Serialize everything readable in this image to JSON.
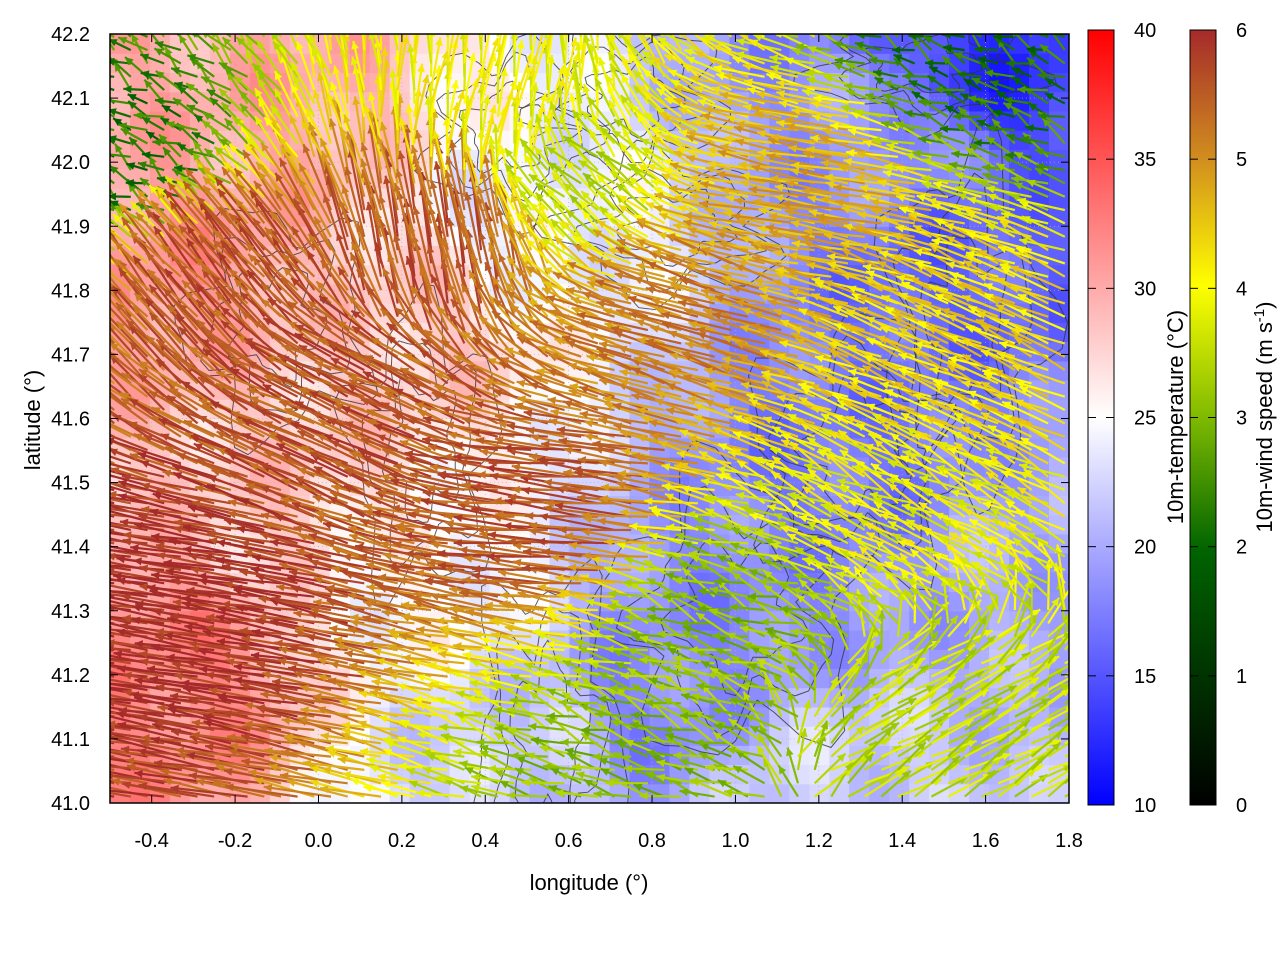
{
  "chart_data": {
    "type": "heatmap",
    "xlabel": "longitude (°)",
    "ylabel": "latitude (°)",
    "xlim": [
      -0.5,
      1.8
    ],
    "ylim": [
      41.0,
      42.2
    ],
    "x_ticks": [
      "-0.4",
      "-0.2",
      "0.0",
      "0.2",
      "0.4",
      "0.6",
      "0.8",
      "1.0",
      "1.2",
      "1.4",
      "1.6",
      "1.8"
    ],
    "y_ticks": [
      "41.0",
      "41.1",
      "41.2",
      "41.3",
      "41.4",
      "41.5",
      "41.6",
      "41.7",
      "41.8",
      "41.9",
      "42.0",
      "42.1",
      "42.2"
    ],
    "grid": true,
    "overlays": [
      "10m-temperature field (color shading)",
      "10m-wind vectors colored by speed",
      "terrain contour lines"
    ],
    "temperature_colorbar": {
      "label": "10m-temperature (°C)",
      "range": [
        10,
        40
      ],
      "ticks": [
        "10",
        "15",
        "20",
        "25",
        "30",
        "35",
        "40"
      ],
      "colors": [
        "#0000ff",
        "#ffffff",
        "#ff0000"
      ]
    },
    "wind_colorbar": {
      "label": "10m-wind speed (m s",
      "label_sup": "-1",
      "label_close": ")",
      "range": [
        0,
        6
      ],
      "ticks": [
        "0",
        "1",
        "2",
        "3",
        "4",
        "5",
        "6"
      ],
      "colors": [
        "#000000",
        "#006400",
        "#7fba00",
        "#ffff00",
        "#d2901e",
        "#a52a2a"
      ]
    },
    "temperature_regions": [
      {
        "lon": -0.35,
        "lat": 41.85,
        "temp": 31
      },
      {
        "lon": -0.2,
        "lat": 42.1,
        "temp": 30
      },
      {
        "lon": -0.4,
        "lat": 41.2,
        "temp": 32
      },
      {
        "lon": -0.1,
        "lat": 41.5,
        "temp": 28
      },
      {
        "lon": 0.2,
        "lat": 41.75,
        "temp": 28
      },
      {
        "lon": 0.25,
        "lat": 41.35,
        "temp": 25
      },
      {
        "lon": 0.55,
        "lat": 41.9,
        "temp": 24
      },
      {
        "lon": 0.5,
        "lat": 41.1,
        "temp": 22
      },
      {
        "lon": 0.8,
        "lat": 41.15,
        "temp": 18
      },
      {
        "lon": 1.0,
        "lat": 41.3,
        "temp": 18
      },
      {
        "lon": 1.3,
        "lat": 41.55,
        "temp": 17
      },
      {
        "lon": 1.55,
        "lat": 41.85,
        "temp": 16
      },
      {
        "lon": 1.6,
        "lat": 42.15,
        "temp": 13
      },
      {
        "lon": 1.35,
        "lat": 42.05,
        "temp": 19
      },
      {
        "lon": 1.2,
        "lat": 41.05,
        "temp": 22
      },
      {
        "lon": 1.7,
        "lat": 41.4,
        "temp": 20
      }
    ],
    "wind_regions": [
      {
        "lon": -0.3,
        "lat": 41.3,
        "u": -6.5,
        "v": 1.0,
        "speed": 6.0
      },
      {
        "lon": -0.2,
        "lat": 41.8,
        "u": -3.0,
        "v": 3.5,
        "speed": 5.5
      },
      {
        "lon": 0.1,
        "lat": 41.6,
        "u": -4.5,
        "v": 2.0,
        "speed": 5.5
      },
      {
        "lon": 0.3,
        "lat": 41.85,
        "u": -1.0,
        "v": 5.0,
        "speed": 5.5
      },
      {
        "lon": 0.45,
        "lat": 42.05,
        "u": 0.5,
        "v": 3.0,
        "speed": 3.5
      },
      {
        "lon": 0.65,
        "lat": 41.95,
        "u": -1.5,
        "v": 1.5,
        "speed": 3.0
      },
      {
        "lon": 0.6,
        "lat": 41.45,
        "u": -5.0,
        "v": 0.5,
        "speed": 5.5
      },
      {
        "lon": 0.9,
        "lat": 41.75,
        "u": -5.0,
        "v": 1.5,
        "speed": 5.0
      },
      {
        "lon": 1.2,
        "lat": 41.95,
        "u": -5.5,
        "v": 1.0,
        "speed": 4.5
      },
      {
        "lon": 1.5,
        "lat": 41.7,
        "u": -3.5,
        "v": 1.5,
        "speed": 4.0
      },
      {
        "lon": 1.4,
        "lat": 41.45,
        "u": -2.0,
        "v": 1.0,
        "speed": 3.5
      },
      {
        "lon": 1.0,
        "lat": 41.3,
        "u": -1.5,
        "v": 0.5,
        "speed": 2.5
      },
      {
        "lon": 1.5,
        "lat": 41.1,
        "u": 2.5,
        "v": 1.5,
        "speed": 3.0
      },
      {
        "lon": 1.6,
        "lat": 42.15,
        "u": -1.0,
        "v": 0.5,
        "speed": 1.5
      },
      {
        "lon": 0.8,
        "lat": 41.05,
        "u": -1.5,
        "v": 0.5,
        "speed": 2.5
      },
      {
        "lon": -0.45,
        "lat": 42.0,
        "u": -1.0,
        "v": 0.5,
        "speed": 1.5
      }
    ]
  }
}
